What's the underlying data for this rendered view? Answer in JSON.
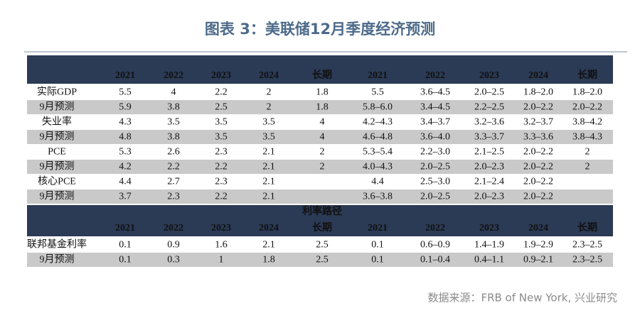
{
  "title": "图表 3：美联储12月季度经济预测",
  "source": "数据来源：FRB of New York, 兴业研究",
  "highlight_colors": {
    "green": "#5a9e2f",
    "red": "#e0201e"
  },
  "table": {
    "sections": [
      {
        "columns": [
          "2021",
          "2022",
          "2023",
          "2024",
          "长期",
          "2021",
          "2022",
          "2023",
          "2024",
          "长期"
        ],
        "rows": [
          {
            "label": "实际GDP",
            "values": [
              "5.5",
              "4",
              "2.2",
              "2",
              "1.8",
              "5.5",
              "3.6–4.5",
              "2.0–2.5",
              "1.8–2.0",
              "1.8–2.0"
            ],
            "green": [
              0,
              2
            ],
            "red": [
              1
            ]
          },
          {
            "label": "9月预测",
            "values": [
              "5.9",
              "3.8",
              "2.5",
              "2",
              "1.8",
              "5.8–6.0",
              "3.4–4.5",
              "2.2–2.5",
              "2.0–2.2",
              "2.0–2.2"
            ]
          },
          {
            "label": "失业率",
            "values": [
              "4.3",
              "3.5",
              "3.5",
              "3.5",
              "4",
              "4.2–4.3",
              "3.4–3.7",
              "3.2–3.6",
              "3.2–3.7",
              "3.8–4.2"
            ],
            "green": [
              0,
              1,
              4
            ]
          },
          {
            "label": "9月预测",
            "values": [
              "4.8",
              "3.8",
              "3.5",
              "3.5",
              "4",
              "4.6–4.8",
              "3.6–4.0",
              "3.3–3.7",
              "3.3–3.6",
              "3.8–4.3"
            ]
          },
          {
            "label": "PCE",
            "values": [
              "5.3",
              "2.6",
              "2.3",
              "2.1",
              "2",
              "5.3–5.4",
              "2.2–3.0",
              "2.1–2.5",
              "2.0–2.2",
              "2"
            ],
            "red": [
              0,
              1
            ]
          },
          {
            "label": "9月预测",
            "values": [
              "4.2",
              "2.2",
              "2.2",
              "2.1",
              "2",
              "4.0–4.3",
              "2.0–2.5",
              "2.0–2.3",
              "2.0–2.2",
              "2"
            ]
          },
          {
            "label": "核心PCE",
            "values": [
              "4.4",
              "2.7",
              "2.3",
              "2.1",
              null,
              "4.4",
              "2.5–3.0",
              "2.1–2.4",
              "2.0–2.2",
              null
            ],
            "red": [
              0,
              1,
              2
            ]
          },
          {
            "label": "9月预测",
            "values": [
              "3.7",
              "2.3",
              "2.2",
              "2.1",
              null,
              "3.6–3.8",
              "2.0–2.5",
              "2.0–2.3",
              "2.0–2.2",
              null
            ]
          }
        ]
      },
      {
        "title": "利率路径",
        "columns": [
          "2021",
          "2022",
          "2023",
          "2024",
          "长期",
          "2021",
          "2022",
          "2023",
          "2024",
          "长期"
        ],
        "rows": [
          {
            "label": "联邦基金利率",
            "values": [
              "0.1",
              "0.9",
              "1.6",
              "2.1",
              "2.5",
              "0.1",
              "0.6–0.9",
              "1.4–1.9",
              "1.9–2.9",
              "2.3–2.5"
            ],
            "red": [
              1,
              2
            ]
          },
          {
            "label": "9月预测",
            "values": [
              "0.1",
              "0.3",
              "1",
              "1.8",
              "2.5",
              "0.1",
              "0.1–0.4",
              "0.4–1.1",
              "0.9–2.1",
              "2.3–2.5"
            ]
          }
        ]
      }
    ]
  }
}
